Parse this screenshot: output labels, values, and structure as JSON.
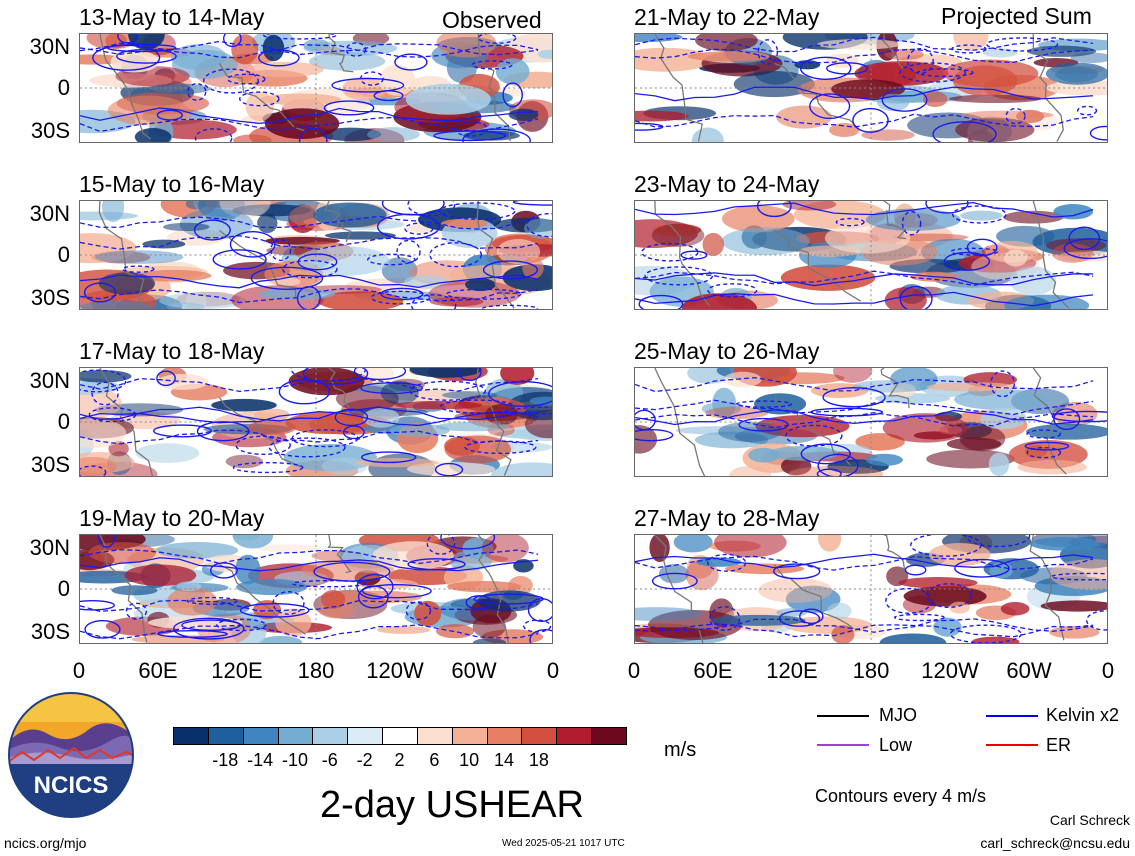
{
  "chart_data": {
    "type": "heatmap",
    "variable": "2-day USHEAR",
    "units": "m/s",
    "contour_note": "Contours every 4 m/s",
    "column_headers": {
      "left": "Observed",
      "right": "Projected Sum"
    },
    "y_ticks": [
      "30N",
      "0",
      "30S"
    ],
    "x_ticks": [
      "0",
      "60E",
      "120E",
      "180",
      "120W",
      "60W",
      "0"
    ],
    "panels": [
      {
        "title": "13-May to 14-May",
        "column": "Observed"
      },
      {
        "title": "15-May to 16-May",
        "column": "Observed"
      },
      {
        "title": "17-May to 18-May",
        "column": "Observed"
      },
      {
        "title": "19-May to 20-May",
        "column": "Observed"
      },
      {
        "title": "21-May to 22-May",
        "column": "Projected Sum"
      },
      {
        "title": "23-May to 24-May",
        "column": "Projected Sum"
      },
      {
        "title": "25-May to 26-May",
        "column": "Projected Sum"
      },
      {
        "title": "27-May to 28-May",
        "column": "Projected Sum"
      }
    ],
    "colorbar": {
      "ticks": [
        "-18",
        "-14",
        "-10",
        "-6",
        "-2",
        "2",
        "6",
        "10",
        "14",
        "18"
      ],
      "colors": [
        "#08306b",
        "#1f5f9e",
        "#3f86c1",
        "#74add1",
        "#abd0e6",
        "#dcecf5",
        "#ffffff",
        "#fbe0d0",
        "#f4b195",
        "#e67f63",
        "#d2503f",
        "#b01d2e",
        "#6b0a1e"
      ]
    },
    "legend": [
      {
        "label": "MJO",
        "color": "#000000"
      },
      {
        "label": "Kelvin x2",
        "color": "#0000ee"
      },
      {
        "label": "Low",
        "color": "#a040d0"
      },
      {
        "label": "ER",
        "color": "#ee0000"
      }
    ]
  },
  "footer": {
    "logo_text": "NCICS",
    "url": "ncics.org/mjo",
    "timestamp": "Wed 2025-05-21 1017 UTC",
    "author": "Carl Schreck",
    "email": "carl_schreck@ncsu.edu"
  }
}
